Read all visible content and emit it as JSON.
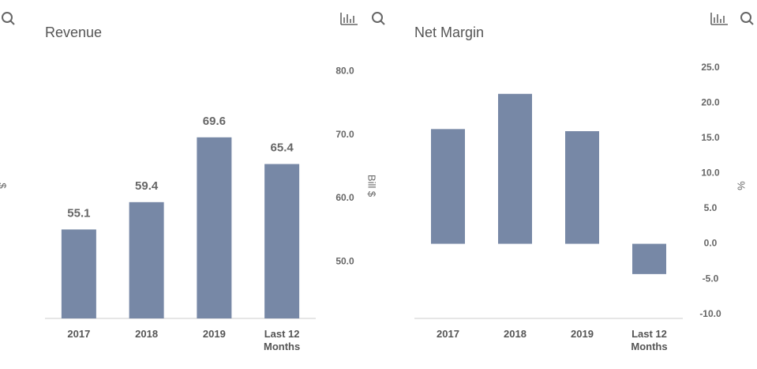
{
  "cropped_left_axis_label": "$",
  "chart_data": [
    {
      "type": "bar",
      "title": "Revenue",
      "y_axis_label": "Bill $",
      "categories": [
        "2017",
        "2018",
        "2019",
        "Last 12 Months"
      ],
      "values": [
        55.1,
        59.4,
        69.6,
        65.4
      ],
      "show_value_labels": true,
      "color": "#7788a6",
      "ylim": [
        41.1,
        84
      ],
      "yticks": [
        {
          "value": 50,
          "label": "50.0"
        },
        {
          "value": 60,
          "label": "60.0"
        },
        {
          "value": 70,
          "label": "70.0"
        },
        {
          "value": 80,
          "label": "80.0"
        }
      ],
      "grid": false
    },
    {
      "type": "bar",
      "title": "Net Margin",
      "y_axis_label": "%",
      "categories": [
        "2017",
        "2018",
        "2019",
        "Last 12 Months"
      ],
      "values": [
        16.3,
        21.3,
        16.0,
        -4.3
      ],
      "show_value_labels": false,
      "color": "#7788a6",
      "ylim": [
        -10.6,
        27
      ],
      "yticks": [
        {
          "value": -10,
          "label": "-10.0"
        },
        {
          "value": -5,
          "label": "-5.0"
        },
        {
          "value": 0,
          "label": "0.0"
        },
        {
          "value": 5,
          "label": "5.0"
        },
        {
          "value": 10,
          "label": "10.0"
        },
        {
          "value": 15,
          "label": "15.0"
        },
        {
          "value": 20,
          "label": "20.0"
        },
        {
          "value": 25,
          "label": "25.0"
        }
      ],
      "grid": false
    }
  ]
}
